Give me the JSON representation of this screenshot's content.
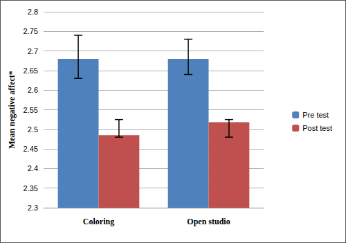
{
  "chart_data": {
    "type": "bar",
    "categories": [
      "Coloring",
      "Open studio"
    ],
    "ylabel": "Mean negative affect*",
    "ylim": [
      2.3,
      2.8
    ],
    "yticks": [
      2.3,
      2.35,
      2.4,
      2.45,
      2.5,
      2.55,
      2.6,
      2.65,
      2.7,
      2.75,
      2.8
    ],
    "grid": true,
    "legend": "right",
    "series": [
      {
        "name": "Pre test",
        "color": "#4f81bd",
        "values": [
          2.68,
          2.68
        ],
        "error_ranges": [
          [
            2.63,
            2.74
          ],
          [
            2.64,
            2.73
          ]
        ]
      },
      {
        "name": "Post test",
        "color": "#c0504d",
        "values": [
          2.485,
          2.518
        ],
        "error_ranges": [
          [
            2.48,
            2.525
          ],
          [
            2.48,
            2.525
          ]
        ]
      }
    ]
  }
}
